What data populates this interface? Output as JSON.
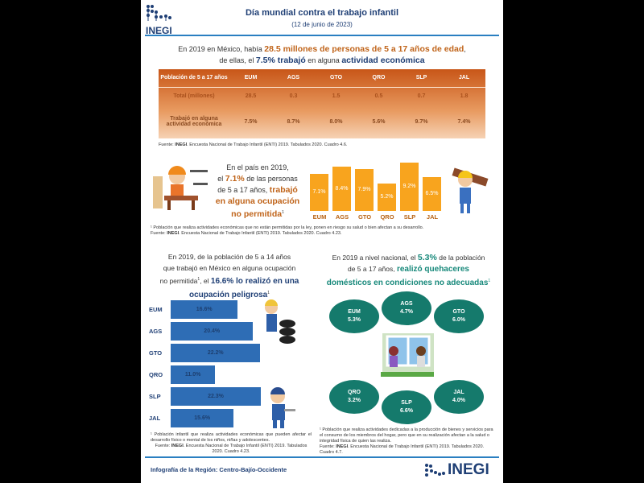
{
  "header": {
    "logo": "INEGI",
    "title": "Día mundial contra el trabajo infantil",
    "date": "(12 de junio de 2023)"
  },
  "headline": {
    "p1": "En 2019 en México, había ",
    "h1": "28.5 millones de personas de 5 a 17 años de edad",
    "p2": ",",
    "p3": "de ellas, el ",
    "h2": "7.5% trabajó",
    "p4": " en alguna ",
    "h3": "actividad económica"
  },
  "table": {
    "corner": "Población de 5 a 17 años",
    "columns": [
      "EUM",
      "AGS",
      "GTO",
      "QRO",
      "SLP",
      "JAL"
    ],
    "rows": [
      {
        "label": "Total (millones)",
        "values": [
          "28.5",
          "0.3",
          "1.5",
          "0.5",
          "0.7",
          "1.8"
        ]
      },
      {
        "label": "Trabajó en alguna actividad económica",
        "values": [
          "7.5%",
          "8.7%",
          "8.0%",
          "5.6%",
          "9.7%",
          "7.4%"
        ]
      }
    ],
    "source_label": "Fuente: ",
    "source_org": "INEGI",
    "source": ". Encuesta Nacional de Trabajo Infantil (ENTI) 2019. Tabulados 2020. Cuadro 4.6."
  },
  "sec2": {
    "t1": "En el país en 2019,",
    "t2a": "el ",
    "t2b": "7.1%",
    "t2c": " de las personas",
    "t3a": "de 5 a 17 años, ",
    "t3b": "trabajó",
    "t4": "en alguna ocupación",
    "t5": "no permitida",
    "sup": "1",
    "note": "¹ Población que realiza actividades económicas que no están permitidas por la ley, ponen en riesgo su salud o bien afectan a su desarrollo.",
    "source_label": "Fuente: ",
    "source_org": "INEGI",
    "source": ". Encuesta Nacional de Trabajo Infantil (ENTI) 2019. Tabulados 2020. Cuadro 4.23."
  },
  "sec3": {
    "t1": "En 2019, de la población de 5 a 14 años",
    "t2": "que trabajó en México en alguna ocupación",
    "t3a": "no permitida",
    "t3b": ", el ",
    "t3c": "16.6% lo realizó en una",
    "t4": "ocupación peligrosa",
    "sup": "1",
    "note": "¹ Población infantil que realiza actividades económicas que pueden afectar el desarrollo físico o mental de los niños, niñas y adolescentes.",
    "source_label": "Fuente: ",
    "source_org": "INEGI",
    "source": ". Encuesta Nacional de Trabajo Infantil (ENTI) 2019. Tabulados 2020. Cuadro 4.23."
  },
  "sec4": {
    "t1a": "En 2019 a nivel nacional, el ",
    "t1b": "5.3%",
    "t1c": " de la población",
    "t2a": "de 5 a 17 años, ",
    "t2b": "realizó quehaceres",
    "t3": "domésticos en condiciones no adecuadas",
    "sup": "1",
    "ovals": [
      {
        "label": "EUM",
        "value": "5.3%"
      },
      {
        "label": "AGS",
        "value": "4.7%"
      },
      {
        "label": "GTO",
        "value": "6.0%"
      },
      {
        "label": "QRO",
        "value": "3.2%"
      },
      {
        "label": "SLP",
        "value": "6.6%"
      },
      {
        "label": "JAL",
        "value": "4.0%"
      }
    ],
    "note": "¹ Población que realiza actividades dedicadas a la producción de bienes y servicios para el consumo de los miembros del hogar, pero que en su realización afectan a la salud o integridad física de quien las realiza.",
    "source_label": "Fuente: ",
    "source_org": "INEGI",
    "source": ". Encuesta Nacional de Trabajo Infantil (ENTI) 2019. Tabulados 2020. Cuadro 4.7."
  },
  "footer": {
    "region": "Infografía de la Región: Centro-Bajío-Occidente",
    "logo": "INEGI"
  },
  "colors": {
    "orange_bar": "#f8a41e",
    "blue_bar": "#2e6db5",
    "teal_oval": "#157a6c",
    "accent_line": "#2a7fc1"
  },
  "chart_data": [
    {
      "type": "bar",
      "orientation": "vertical",
      "categories": [
        "EUM",
        "AGS",
        "GTO",
        "QRO",
        "SLP",
        "JAL"
      ],
      "values": [
        7.1,
        8.4,
        7.9,
        5.2,
        9.2,
        6.5
      ],
      "labels": [
        "7.1%",
        "8.4%",
        "7.9%",
        "5.2%",
        "9.2%",
        "6.5%"
      ],
      "ylim": [
        0,
        9.2
      ]
    },
    {
      "type": "bar",
      "orientation": "horizontal",
      "categories": [
        "EUM",
        "AGS",
        "GTO",
        "QRO",
        "SLP",
        "JAL"
      ],
      "values": [
        16.6,
        20.4,
        22.2,
        11.0,
        22.3,
        15.6
      ],
      "labels": [
        "16.6%",
        "20.4%",
        "22.2%",
        "11.0%",
        "22.3%",
        "15.6%"
      ],
      "xlim": [
        0,
        22.3
      ]
    }
  ]
}
